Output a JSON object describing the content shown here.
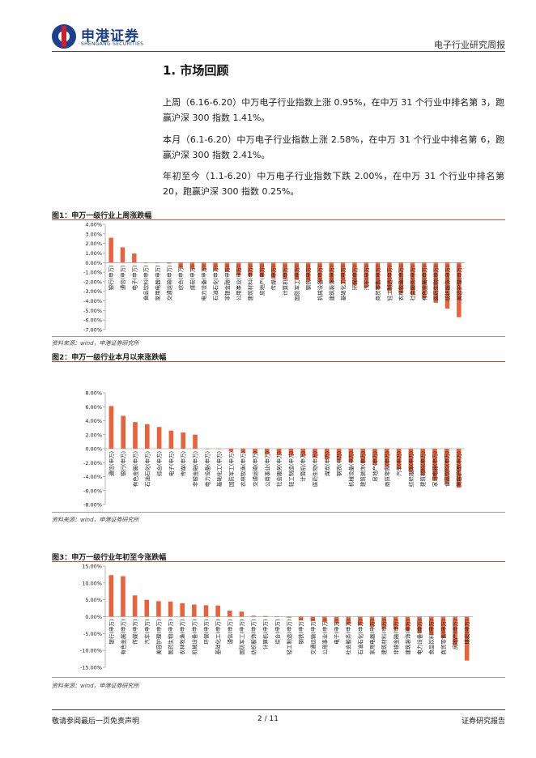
{
  "header": {
    "brand_cn": "申港证券",
    "brand_en": "SHENGANG SECURITIES",
    "report_type": "电子行业研究周报"
  },
  "section": {
    "title": "1. 市场回顾",
    "paragraphs": [
      "上周（6.16-6.20）中万电子行业指数上涨 0.95%，在中万 31 个行业中排名第 3，跑赢沪深 300 指数 1.41%。",
      "本月（6.1-6.20）中万电子行业指数上涨 2.58%，在中万 31 个行业中排名第 6，跑赢沪深 300 指数 2.41%。",
      "年初至今（1.1-6.20）中万电子行业指数下跌 2.00%，在中万 31 个行业中排名第 20，跑赢沪深 300 指数 0.25%。"
    ]
  },
  "figures": [
    {
      "title": "图1：申万一级行业上周涨跌幅",
      "source": "资料来源：wind，申港证券研究所"
    },
    {
      "title": "图2：申万一级行业本月以来涨跌幅",
      "source": "资料来源：wind，申港证券研究所"
    },
    {
      "title": "图3：申万一级行业年初至今涨跌幅",
      "source": "资料来源：wind，申港证券研究所"
    }
  ],
  "chart_data": [
    {
      "type": "bar",
      "title": "图1：申万一级行业上周涨跌幅",
      "categories": [
        "银行(申万)",
        "通信(申万)",
        "电子(申万)",
        "食品饮料(申万)",
        "家用电器(申万)",
        "交通运输(申万)",
        "综合(申万)",
        "煤炭(申万)",
        "电力设备(申万)",
        "石油石化(申万)",
        "非银金融(申万)",
        "公用事业(申万)",
        "建筑材料(申万)",
        "房地产(申万)",
        "传媒(申万)",
        "计算机(申万)",
        "国防军工(申万)",
        "钢铁(申万)",
        "机械设备(申万)",
        "建筑装饰(申万)",
        "基础化工(申万)",
        "环保(申万)",
        "汽车(申万)",
        "商贸零售(申万)",
        "轻工制造(申万)",
        "农林牧渔(申万)",
        "社会服务(申万)",
        "有色金属(申万)",
        "医药生物(申万)",
        "纺织服饰(申万)",
        "美容护理(申万)"
      ],
      "values": [
        2.6,
        1.6,
        0.95,
        0.0,
        -0.05,
        -0.1,
        -0.6,
        -0.7,
        -0.8,
        -0.85,
        -1.0,
        -1.3,
        -1.4,
        -1.5,
        -1.6,
        -1.7,
        -1.8,
        -1.9,
        -2.0,
        -2.1,
        -2.2,
        -2.4,
        -2.6,
        -2.8,
        -3.0,
        -3.2,
        -3.4,
        -3.7,
        -4.2,
        -4.8,
        -5.7
      ],
      "ylim": [
        -7.0,
        4.0
      ],
      "yticks": [
        "4.00%",
        "3.00%",
        "2.00%",
        "1.00%",
        "0.00%",
        "-1.00%",
        "-2.00%",
        "-3.00%",
        "-4.00%",
        "-5.00%",
        "-6.00%",
        "-7.00%"
      ],
      "color": "#e8623c"
    },
    {
      "type": "bar",
      "title": "图2：申万一级行业本月以来涨跌幅",
      "categories": [
        "通信(申万)",
        "银行(申万)",
        "有色金属(申万)",
        "石油石化(申万)",
        "综合(申万)",
        "电子(申万)",
        "传媒(申万)",
        "非银金融(申万)",
        "电力设备(申万)",
        "基础化工(申万)",
        "国防军工(申万)",
        "农林牧渔(申万)",
        "交通运输(申万)",
        "公用事业(申万)",
        "社会服务(申万)",
        "轻工制造(申万)",
        "计算机(申万)",
        "医药生物(申万)",
        "煤炭(申万)",
        "钢铁(申万)",
        "机械设备(申万)",
        "建筑装饰(申万)",
        "房地产(申万)",
        "商贸零售(申万)",
        "汽车(申万)",
        "纺织服饰(申万)",
        "建筑材料(申万)",
        "家用电器(申万)",
        "食品饮料(申万)",
        "美容护理(申万)"
      ],
      "values": [
        6.1,
        4.7,
        3.8,
        3.5,
        3.1,
        2.58,
        2.3,
        2.0,
        0.0,
        -0.05,
        -0.4,
        -0.6,
        -0.7,
        -0.8,
        -0.9,
        -1.0,
        -1.1,
        -1.3,
        -1.5,
        -1.7,
        -1.9,
        -2.1,
        -2.3,
        -2.6,
        -2.9,
        -3.3,
        -3.8,
        -4.5,
        -5.0,
        -5.6
      ],
      "ylim": [
        -8.0,
        8.0
      ],
      "yticks": [
        "8.00%",
        "6.00%",
        "4.00%",
        "2.00%",
        "0.00%",
        "-2.00%",
        "-4.00%",
        "-6.00%",
        "-8.00%"
      ],
      "color": "#e8623c"
    },
    {
      "type": "bar",
      "title": "图3：申万一级行业年初至今涨跌幅",
      "categories": [
        "银行(申万)",
        "有色金属(申万)",
        "传媒(申万)",
        "汽车(申万)",
        "美容护理(申万)",
        "医药生物(申万)",
        "农林牧渔(申万)",
        "机械设备(申万)",
        "环保(申万)",
        "基础化工(申万)",
        "通信(申万)",
        "国防军工(申万)",
        "纺织服饰(申万)",
        "计算机(申万)",
        "综合(申万)",
        "轻工制造(申万)",
        "钢铁(申万)",
        "交通运输(申万)",
        "公用事业(申万)",
        "电子(申万)",
        "社会服务(申万)",
        "石油石化(申万)",
        "家用电器(申万)",
        "建筑材料(申万)",
        "非银金融(申万)",
        "建筑装饰(申万)",
        "电力设备(申万)",
        "食品饮料(申万)",
        "商贸零售(申万)",
        "房地产(申万)",
        "煤炭(申万)"
      ],
      "values": [
        12.3,
        12.0,
        6.3,
        5.0,
        4.6,
        4.5,
        4.0,
        3.6,
        3.4,
        3.3,
        1.8,
        1.5,
        0.3,
        0.2,
        0.1,
        -0.3,
        -1.0,
        -1.3,
        -1.6,
        -2.0,
        -2.3,
        -2.6,
        -3.0,
        -3.4,
        -3.8,
        -4.3,
        -4.8,
        -5.4,
        -6.2,
        -8.5,
        -13.0
      ],
      "ylim": [
        -15.0,
        15.0
      ],
      "yticks": [
        "15.00%",
        "10.00%",
        "5.00%",
        "0.00%",
        "-5.00%",
        "-10.00%",
        "-15.00%"
      ],
      "color": "#e8623c"
    }
  ],
  "footer": {
    "disclaimer": "敬请参阅最后一页免责声明",
    "page": "2 / 11",
    "doc_type": "证券研究报告"
  }
}
